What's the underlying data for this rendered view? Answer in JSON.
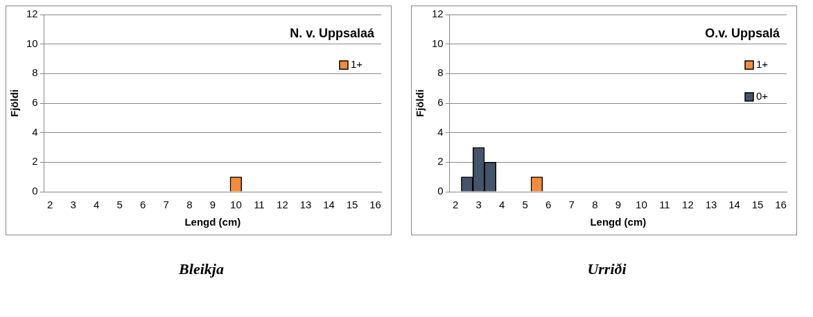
{
  "chart_data": [
    {
      "type": "bar",
      "title": "N. v. Uppsalaá",
      "xlabel": "Lengd (cm)",
      "ylabel": "Fjöldi",
      "categories": [
        "2",
        null,
        "3",
        null,
        "4",
        null,
        "5",
        null,
        "6",
        null,
        "7",
        null,
        "8",
        null,
        "9",
        null,
        "10",
        null,
        "11",
        null,
        "12",
        null,
        "13",
        null,
        "14",
        null,
        "15",
        null,
        "16"
      ],
      "series": [
        {
          "name": "1+",
          "color": "#f38b3c",
          "values": [
            null,
            null,
            null,
            null,
            null,
            null,
            null,
            null,
            null,
            null,
            null,
            null,
            null,
            null,
            null,
            null,
            1,
            null,
            null,
            null,
            null,
            null,
            null,
            null,
            null,
            null,
            null,
            null,
            null
          ]
        }
      ],
      "ylim": [
        0,
        12
      ],
      "yticks": [
        0,
        2,
        4,
        6,
        8,
        10,
        12
      ],
      "grid": "y",
      "legend": "top right",
      "annotations": [
        "Bleikja"
      ]
    },
    {
      "type": "bar",
      "title": "O.v. Uppsalá",
      "xlabel": "Lengd (cm)",
      "ylabel": "Fjöldi",
      "categories": [
        "2",
        null,
        "3",
        null,
        "4",
        null,
        "5",
        null,
        "6",
        null,
        "7",
        null,
        "8",
        null,
        "9",
        null,
        "10",
        null,
        "11",
        null,
        "12",
        null,
        "13",
        null,
        "14",
        null,
        "15",
        null,
        "16"
      ],
      "series": [
        {
          "name": "1+",
          "color": "#f38b3c",
          "values": [
            null,
            null,
            null,
            null,
            null,
            null,
            null,
            1,
            null,
            null,
            null,
            null,
            null,
            null,
            null,
            null,
            null,
            null,
            null,
            null,
            null,
            null,
            null,
            null,
            null,
            null,
            null,
            null,
            null
          ]
        },
        {
          "name": "0+",
          "color": "#44546a",
          "values": [
            null,
            1,
            3,
            2,
            null,
            null,
            null,
            null,
            null,
            null,
            null,
            null,
            null,
            null,
            null,
            null,
            null,
            null,
            null,
            null,
            null,
            null,
            null,
            null,
            null,
            null,
            null,
            null,
            null
          ]
        }
      ],
      "ylim": [
        0,
        12
      ],
      "yticks": [
        0,
        2,
        4,
        6,
        8,
        10,
        12
      ],
      "grid": "y",
      "legend": "top right",
      "annotations": [
        "Urriði"
      ]
    }
  ]
}
